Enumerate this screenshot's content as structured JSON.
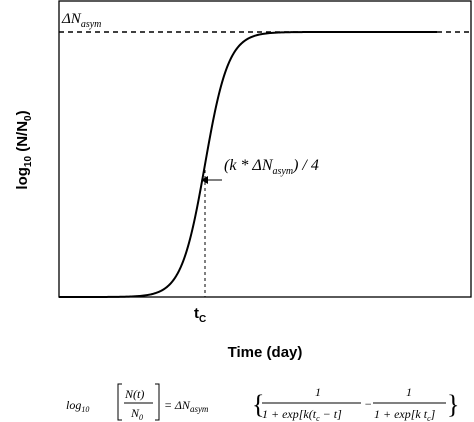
{
  "chart_data": {
    "type": "line",
    "title": "",
    "xlabel": "Time (day)",
    "ylabel_main": "log",
    "ylabel_sub": "10",
    "ylabel_rest": " (N/N",
    "ylabel_sub0": "0",
    "ylabel_close": ")",
    "curve": "sigmoid",
    "annotations": {
      "asymptote": {
        "delta": "ΔN",
        "sub": "asym"
      },
      "slope": {
        "open": "(k * ΔN",
        "sub": "asym",
        "close": ") / 4"
      },
      "tc": {
        "main": "t",
        "sub": "C"
      }
    }
  },
  "formula": {
    "log": "log",
    "log_sub": "10",
    "num": "N(t)",
    "den_N": "N",
    "den_sub": "0",
    "equals": "= ΔN",
    "asym": "asym",
    "one": "1",
    "den1": "1 + exp[k(t",
    "den1_c": "c",
    "den1_end": " − t]",
    "minus": "−",
    "den2": "1 + exp[k t",
    "den2_c": "c",
    "den2_end": "]"
  }
}
